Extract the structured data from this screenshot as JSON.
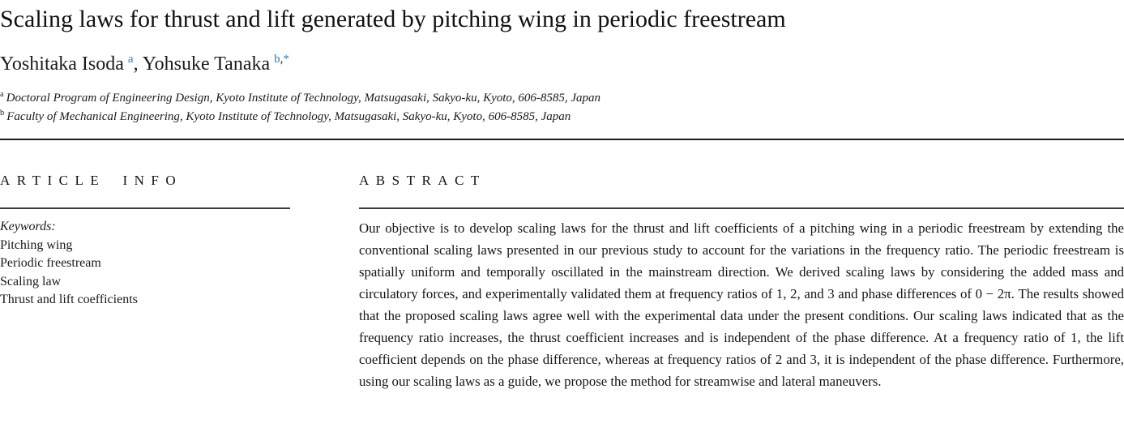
{
  "paper": {
    "title": "Scaling laws for thrust and lift generated by pitching wing in periodic freestream",
    "authors": {
      "first": {
        "name": "Yoshitaka Isoda",
        "sup": "a"
      },
      "separator": ",",
      "second": {
        "name": "Yohsuke Tanaka",
        "sup_ref": "b",
        "sup_sep": ",",
        "sup_corresponding": "*"
      }
    },
    "affiliations": [
      {
        "sup": "a",
        "text": "Doctoral Program of Engineering Design, Kyoto Institute of Technology, Matsugasaki, Sakyo-ku, Kyoto, 606-8585, Japan"
      },
      {
        "sup": "b",
        "text": "Faculty of Mechanical Engineering, Kyoto Institute of Technology, Matsugasaki, Sakyo-ku, Kyoto, 606-8585, Japan"
      }
    ],
    "article_info": {
      "heading": "ARTICLE INFO",
      "keywords_label": "Keywords:",
      "keywords": [
        "Pitching wing",
        "Periodic freestream",
        "Scaling law",
        "Thrust and lift coefficients"
      ]
    },
    "abstract": {
      "heading": "ABSTRACT",
      "text": "Our objective is to develop scaling laws for the thrust and lift coefficients of a pitching wing in a periodic freestream by extending the conventional scaling laws presented in our previous study to account for the variations in the frequency ratio. The periodic freestream is spatially uniform and temporally oscillated in the mainstream direction. We derived scaling laws by considering the added mass and circulatory forces, and experimentally validated them at frequency ratios of 1, 2, and 3 and phase differences of 0 − 2π. The results showed that the proposed scaling laws agree well with the experimental data under the present conditions. Our scaling laws indicated that as the frequency ratio increases, the thrust coefficient increases and is independent of the phase difference. At a frequency ratio of 1, the lift coefficient depends on the phase difference, whereas at frequency ratios of 2 and 3, it is independent of the phase difference. Furthermore, using our scaling laws as a guide, we propose the method for streamwise and lateral maneuvers."
    },
    "colors": {
      "link_blue": "#2c7fb8",
      "text": "#1a1a1a",
      "rule_dark": "#1c1c1c"
    }
  }
}
